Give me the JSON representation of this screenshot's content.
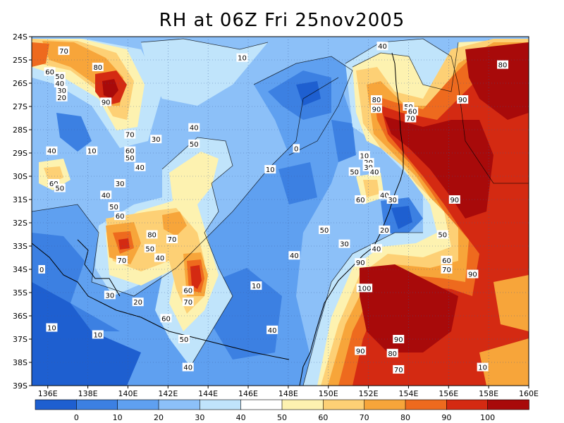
{
  "title": "RH at 06Z Fri 25nov2005",
  "map": {
    "lat_labels": [
      "24S",
      "25S",
      "26S",
      "27S",
      "28S",
      "29S",
      "30S",
      "31S",
      "32S",
      "33S",
      "34S",
      "35S",
      "36S",
      "37S",
      "38S",
      "39S"
    ],
    "lon_labels": [
      "136E",
      "138E",
      "140E",
      "142E",
      "144E",
      "146E",
      "148E",
      "150E",
      "152E",
      "154E",
      "156E",
      "158E",
      "160E"
    ],
    "lon_range": [
      135.2,
      160
    ],
    "lat_range": [
      -39,
      -24
    ]
  },
  "colorbar": {
    "labels": [
      "0",
      "10",
      "20",
      "30",
      "40",
      "50",
      "60",
      "70",
      "80",
      "90",
      "100"
    ],
    "colors": [
      "#1e5fd0",
      "#3c80e2",
      "#5fa0f0",
      "#8cc0f8",
      "#c0e4fb",
      "#ffffff",
      "#fdf2b0",
      "#fdd075",
      "#f7a53a",
      "#ee6a1e",
      "#d42a12",
      "#a80a0a"
    ]
  },
  "contour_labels": [
    {
      "text": "70",
      "lon": 136.8,
      "lat": -24.6
    },
    {
      "text": "80",
      "lon": 138.5,
      "lat": -25.3
    },
    {
      "text": "60",
      "lon": 136.1,
      "lat": -25.5
    },
    {
      "text": "50",
      "lon": 136.6,
      "lat": -25.7
    },
    {
      "text": "40",
      "lon": 136.6,
      "lat": -26.0
    },
    {
      "text": "30",
      "lon": 136.7,
      "lat": -26.3
    },
    {
      "text": "20",
      "lon": 136.7,
      "lat": -26.6
    },
    {
      "text": "90",
      "lon": 138.9,
      "lat": -26.8
    },
    {
      "text": "10",
      "lon": 138.2,
      "lat": -28.9
    },
    {
      "text": "70",
      "lon": 140.1,
      "lat": -28.2
    },
    {
      "text": "60",
      "lon": 140.1,
      "lat": -28.9
    },
    {
      "text": "50",
      "lon": 140.1,
      "lat": -29.2
    },
    {
      "text": "40",
      "lon": 140.6,
      "lat": -29.6
    },
    {
      "text": "30",
      "lon": 141.4,
      "lat": -28.4
    },
    {
      "text": "40",
      "lon": 143.3,
      "lat": -27.9
    },
    {
      "text": "50",
      "lon": 143.3,
      "lat": -28.6
    },
    {
      "text": "40",
      "lon": 136.2,
      "lat": -28.9
    },
    {
      "text": "60",
      "lon": 136.3,
      "lat": -30.3
    },
    {
      "text": "50",
      "lon": 136.6,
      "lat": -30.5
    },
    {
      "text": "30",
      "lon": 139.6,
      "lat": -30.3
    },
    {
      "text": "40",
      "lon": 138.9,
      "lat": -30.8
    },
    {
      "text": "50",
      "lon": 139.3,
      "lat": -31.3
    },
    {
      "text": "60",
      "lon": 139.6,
      "lat": -31.7
    },
    {
      "text": "80",
      "lon": 141.2,
      "lat": -32.5
    },
    {
      "text": "70",
      "lon": 142.2,
      "lat": -32.7
    },
    {
      "text": "50",
      "lon": 141.1,
      "lat": -33.1
    },
    {
      "text": "40",
      "lon": 141.6,
      "lat": -33.5
    },
    {
      "text": "70",
      "lon": 139.7,
      "lat": -33.6
    },
    {
      "text": "30",
      "lon": 139.1,
      "lat": -35.1
    },
    {
      "text": "20",
      "lon": 140.5,
      "lat": -35.4
    },
    {
      "text": "60",
      "lon": 143.0,
      "lat": -34.9
    },
    {
      "text": "70",
      "lon": 143.0,
      "lat": -35.4
    },
    {
      "text": "60",
      "lon": 141.9,
      "lat": -36.1
    },
    {
      "text": "50",
      "lon": 142.8,
      "lat": -37.0
    },
    {
      "text": "40",
      "lon": 143.0,
      "lat": -38.2
    },
    {
      "text": "0",
      "lon": 135.7,
      "lat": -34.0
    },
    {
      "text": "10",
      "lon": 136.2,
      "lat": -36.5
    },
    {
      "text": "10",
      "lon": 138.5,
      "lat": -36.8
    },
    {
      "text": "10",
      "lon": 145.7,
      "lat": -24.9
    },
    {
      "text": "0",
      "lon": 148.4,
      "lat": -28.8
    },
    {
      "text": "10",
      "lon": 147.1,
      "lat": -29.7
    },
    {
      "text": "10",
      "lon": 146.4,
      "lat": -34.7
    },
    {
      "text": "40",
      "lon": 147.2,
      "lat": -36.6
    },
    {
      "text": "40",
      "lon": 152.7,
      "lat": -24.4
    },
    {
      "text": "80",
      "lon": 152.4,
      "lat": -26.7
    },
    {
      "text": "90",
      "lon": 152.4,
      "lat": -27.1
    },
    {
      "text": "50",
      "lon": 154.0,
      "lat": -27.0
    },
    {
      "text": "60",
      "lon": 154.2,
      "lat": -27.2
    },
    {
      "text": "70",
      "lon": 154.1,
      "lat": -27.5
    },
    {
      "text": "90",
      "lon": 156.7,
      "lat": -26.7
    },
    {
      "text": "80",
      "lon": 158.7,
      "lat": -25.2
    },
    {
      "text": "10",
      "lon": 151.8,
      "lat": -29.1
    },
    {
      "text": "20",
      "lon": 152.0,
      "lat": -29.4
    },
    {
      "text": "30",
      "lon": 152.0,
      "lat": -29.6
    },
    {
      "text": "40",
      "lon": 152.3,
      "lat": -29.8
    },
    {
      "text": "50",
      "lon": 151.3,
      "lat": -29.8
    },
    {
      "text": "40",
      "lon": 152.8,
      "lat": -30.8
    },
    {
      "text": "30",
      "lon": 153.2,
      "lat": -31.0
    },
    {
      "text": "60",
      "lon": 151.6,
      "lat": -31.0
    },
    {
      "text": "90",
      "lon": 156.3,
      "lat": -31.0
    },
    {
      "text": "20",
      "lon": 152.8,
      "lat": -32.3
    },
    {
      "text": "50",
      "lon": 149.8,
      "lat": -32.3
    },
    {
      "text": "30",
      "lon": 150.8,
      "lat": -32.9
    },
    {
      "text": "40",
      "lon": 148.3,
      "lat": -33.4
    },
    {
      "text": "40",
      "lon": 152.4,
      "lat": -33.1
    },
    {
      "text": "50",
      "lon": 155.7,
      "lat": -32.5
    },
    {
      "text": "60",
      "lon": 155.9,
      "lat": -33.6
    },
    {
      "text": "70",
      "lon": 155.9,
      "lat": -34.0
    },
    {
      "text": "90",
      "lon": 157.2,
      "lat": -34.2
    },
    {
      "text": "90",
      "lon": 151.6,
      "lat": -33.7
    },
    {
      "text": "100",
      "lon": 151.8,
      "lat": -34.8
    },
    {
      "text": "90",
      "lon": 153.5,
      "lat": -37.0
    },
    {
      "text": "90",
      "lon": 151.6,
      "lat": -37.5
    },
    {
      "text": "80",
      "lon": 153.2,
      "lat": -37.6
    },
    {
      "text": "70",
      "lon": 153.5,
      "lat": -38.3
    },
    {
      "text": "10",
      "lon": 157.7,
      "lat": -38.2
    }
  ]
}
